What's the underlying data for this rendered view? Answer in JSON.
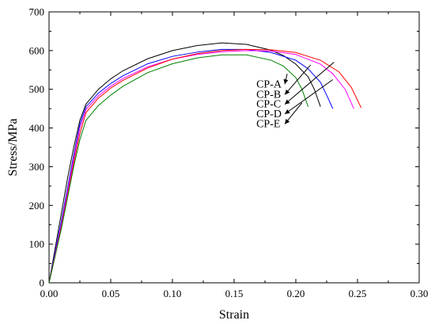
{
  "chart_data": {
    "type": "line",
    "title": "",
    "xlabel": "Strain",
    "ylabel": "Stress/MPa",
    "xlim": [
      0.0,
      0.3
    ],
    "ylim": [
      0,
      700
    ],
    "xticks": [
      "0.00",
      "0.05",
      "0.10",
      "0.15",
      "0.20",
      "0.25",
      "0.30"
    ],
    "yticks": [
      "0",
      "100",
      "200",
      "300",
      "400",
      "500",
      "600",
      "700"
    ],
    "grid": false,
    "series": [
      {
        "name": "CP-A",
        "color": "#000000",
        "x": [
          0.0,
          0.005,
          0.01,
          0.015,
          0.02,
          0.025,
          0.03,
          0.04,
          0.05,
          0.06,
          0.08,
          0.1,
          0.12,
          0.14,
          0.16,
          0.18,
          0.19,
          0.2,
          0.21,
          0.215,
          0.22
        ],
        "y": [
          0,
          90,
          180,
          270,
          350,
          420,
          462,
          500,
          527,
          548,
          579,
          600,
          613,
          620,
          616,
          601,
          587,
          565,
          532,
          500,
          455
        ]
      },
      {
        "name": "CP-B",
        "color": "#0000ff",
        "x": [
          0.0,
          0.005,
          0.01,
          0.015,
          0.02,
          0.025,
          0.03,
          0.04,
          0.05,
          0.06,
          0.08,
          0.1,
          0.12,
          0.14,
          0.16,
          0.18,
          0.2,
          0.21,
          0.22,
          0.225,
          0.23
        ],
        "y": [
          0,
          80,
          160,
          245,
          330,
          410,
          455,
          490,
          515,
          535,
          566,
          585,
          596,
          603,
          603,
          595,
          575,
          553,
          518,
          485,
          450
        ]
      },
      {
        "name": "CP-C",
        "color": "#ff00ff",
        "x": [
          0.0,
          0.005,
          0.01,
          0.015,
          0.02,
          0.025,
          0.03,
          0.04,
          0.05,
          0.06,
          0.08,
          0.1,
          0.12,
          0.14,
          0.16,
          0.18,
          0.2,
          0.22,
          0.23,
          0.24,
          0.247
        ],
        "y": [
          0,
          75,
          150,
          235,
          320,
          400,
          448,
          483,
          508,
          528,
          558,
          578,
          590,
          597,
          600,
          599,
          590,
          565,
          540,
          500,
          450
        ]
      },
      {
        "name": "CP-D",
        "color": "#ff0000",
        "x": [
          0.0,
          0.005,
          0.01,
          0.015,
          0.02,
          0.025,
          0.03,
          0.04,
          0.05,
          0.06,
          0.08,
          0.1,
          0.12,
          0.14,
          0.16,
          0.18,
          0.2,
          0.22,
          0.235,
          0.245,
          0.253
        ],
        "y": [
          0,
          70,
          145,
          225,
          310,
          385,
          440,
          477,
          503,
          523,
          555,
          578,
          592,
          600,
          603,
          602,
          595,
          575,
          545,
          505,
          452
        ]
      },
      {
        "name": "CP-E",
        "color": "#008000",
        "x": [
          0.0,
          0.005,
          0.01,
          0.015,
          0.02,
          0.025,
          0.03,
          0.04,
          0.05,
          0.06,
          0.08,
          0.1,
          0.12,
          0.14,
          0.16,
          0.18,
          0.19,
          0.2,
          0.205,
          0.21
        ],
        "y": [
          0,
          70,
          140,
          220,
          300,
          370,
          420,
          458,
          485,
          508,
          543,
          566,
          581,
          589,
          589,
          575,
          560,
          530,
          500,
          455
        ]
      }
    ],
    "annotations": [
      {
        "label": "CP-A",
        "text_at": [
          0.168,
          505
        ],
        "arrow_to": [
          0.193,
          540
        ],
        "color": "#000000"
      },
      {
        "label": "CP-B",
        "text_at": [
          0.168,
          478
        ],
        "arrow_to": [
          0.212,
          563
        ],
        "color": "#0000ff"
      },
      {
        "label": "CP-C",
        "text_at": [
          0.168,
          453
        ],
        "arrow_to": [
          0.231,
          570
        ],
        "color": "#ff00ff"
      },
      {
        "label": "CP-D",
        "text_at": [
          0.168,
          428
        ],
        "arrow_to": [
          0.23,
          525
        ],
        "color": "#ff0000"
      },
      {
        "label": "CP-E",
        "text_at": [
          0.168,
          402
        ],
        "arrow_to": [
          0.205,
          465
        ],
        "color": "#008000"
      }
    ]
  }
}
